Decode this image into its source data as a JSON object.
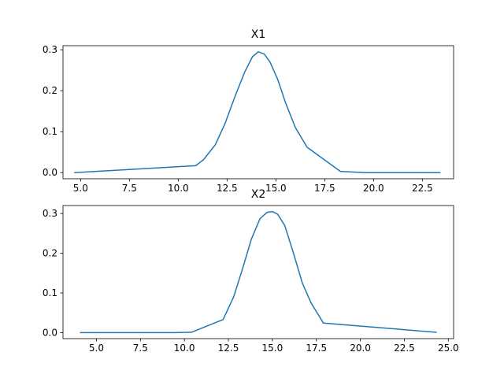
{
  "chart_data": [
    {
      "type": "line",
      "title": "X1",
      "xlabel": "",
      "ylabel": "",
      "xlim": [
        4.1,
        24.1
      ],
      "ylim": [
        -0.015,
        0.31
      ],
      "xticks": [
        5.0,
        7.5,
        10.0,
        12.5,
        15.0,
        17.5,
        20.0,
        22.5
      ],
      "xtick_labels": [
        "5.0",
        "7.5",
        "10.0",
        "12.5",
        "15.0",
        "17.5",
        "20.0",
        "22.5"
      ],
      "yticks": [
        0.0,
        0.1,
        0.2,
        0.3
      ],
      "ytick_labels": [
        "0.0",
        "0.1",
        "0.2",
        "0.3"
      ],
      "grid": false,
      "color": "#1f77b4",
      "series": [
        {
          "x": [
            4.7,
            10.9,
            11.3,
            11.9,
            12.4,
            12.9,
            13.4,
            13.8,
            14.1,
            14.4,
            14.7,
            15.1,
            15.5,
            16.0,
            16.6,
            18.3,
            19.6,
            23.4
          ],
          "y": [
            0.0,
            0.017,
            0.032,
            0.068,
            0.12,
            0.185,
            0.245,
            0.283,
            0.295,
            0.29,
            0.27,
            0.227,
            0.17,
            0.11,
            0.062,
            0.003,
            0.0,
            0.0
          ]
        }
      ]
    },
    {
      "type": "line",
      "title": "X2",
      "xlabel": "",
      "ylabel": "",
      "xlim": [
        3.1,
        25.3
      ],
      "ylim": [
        -0.015,
        0.32
      ],
      "xticks": [
        5.0,
        7.5,
        10.0,
        12.5,
        15.0,
        17.5,
        20.0,
        22.5,
        25.0
      ],
      "xtick_labels": [
        "5.0",
        "7.5",
        "10.0",
        "12.5",
        "15.0",
        "17.5",
        "20.0",
        "22.5",
        "25.0"
      ],
      "yticks": [
        0.0,
        0.1,
        0.2,
        0.3
      ],
      "ytick_labels": [
        "0.0",
        "0.1",
        "0.2",
        "0.3"
      ],
      "grid": false,
      "color": "#1f77b4",
      "series": [
        {
          "x": [
            4.1,
            9.5,
            10.4,
            12.2,
            12.8,
            13.3,
            13.8,
            14.3,
            14.7,
            15.0,
            15.3,
            15.7,
            16.2,
            16.7,
            17.2,
            17.9,
            24.3
          ],
          "y": [
            0.0,
            0.0,
            0.001,
            0.033,
            0.09,
            0.16,
            0.235,
            0.287,
            0.303,
            0.305,
            0.298,
            0.27,
            0.2,
            0.125,
            0.075,
            0.024,
            0.001
          ]
        }
      ]
    }
  ]
}
